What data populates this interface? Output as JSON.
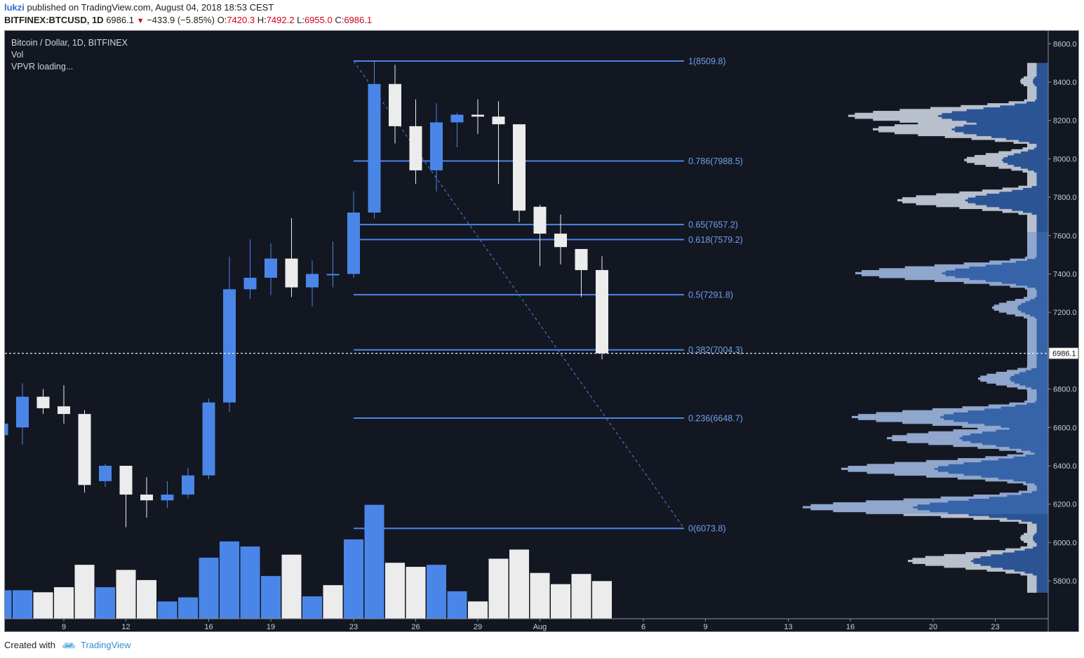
{
  "header": {
    "user": "lukzi",
    "published": "published on TradingView.com, August 04, 2018 18:53 CEST",
    "symbol": "BITFINEX:BTCUSD, 1D",
    "last": "6986.1",
    "change": "−433.9 (−5.85%)",
    "o_label": "O:",
    "o": "7420.3",
    "h_label": "H:",
    "h": "7492.2",
    "l_label": "L:",
    "l": "6955.0",
    "c_label": "C:",
    "c": "6986.1"
  },
  "legend": {
    "title": "Bitcoin / Dollar, 1D, BITFINEX",
    "vol": "Vol",
    "vpvr": "VPVR loading..."
  },
  "footer": {
    "created_with": "Created with",
    "brand": "TradingView"
  },
  "colors": {
    "up": "#4a86e8",
    "down": "#ececec",
    "background": "#131722",
    "fib": "#4a86e8",
    "profile_up": "#3b6cb5",
    "profile_down": "#c8cfdb"
  },
  "chart_data": {
    "type": "candlestick",
    "title": "Bitcoin / Dollar, 1D, BITFINEX",
    "ylim": [
      5700,
      8650
    ],
    "y_ticks": [
      5800,
      6000,
      6200,
      6400,
      6600,
      6800,
      7000,
      7200,
      7400,
      7600,
      7800,
      8000,
      8200,
      8400,
      8600
    ],
    "x_ticks": [
      {
        "label": "9",
        "day": 0
      },
      {
        "label": "12",
        "day": 3
      },
      {
        "label": "16",
        "day": 7
      },
      {
        "label": "19",
        "day": 10
      },
      {
        "label": "23",
        "day": 14
      },
      {
        "label": "26",
        "day": 17
      },
      {
        "label": "29",
        "day": 20
      },
      {
        "label": "Aug",
        "day": 23
      },
      {
        "label": "6",
        "day": 28
      },
      {
        "label": "9",
        "day": 31
      },
      {
        "label": "13",
        "day": 35
      },
      {
        "label": "16",
        "day": 38
      },
      {
        "label": "20",
        "day": 42
      },
      {
        "label": "23",
        "day": 45
      }
    ],
    "candles": [
      {
        "date": "Jul 6",
        "open": 6560,
        "high": 6650,
        "low": 6520,
        "close": 6620
      },
      {
        "date": "Jul 7",
        "open": 6600,
        "high": 6830,
        "low": 6510,
        "close": 6760
      },
      {
        "date": "Jul 8",
        "open": 6760,
        "high": 6800,
        "low": 6670,
        "close": 6700
      },
      {
        "date": "Jul 9",
        "open": 6710,
        "high": 6820,
        "low": 6620,
        "close": 6670
      },
      {
        "date": "Jul 10",
        "open": 6670,
        "high": 6690,
        "low": 6260,
        "close": 6300
      },
      {
        "date": "Jul 11",
        "open": 6320,
        "high": 6410,
        "low": 6290,
        "close": 6400
      },
      {
        "date": "Jul 12",
        "open": 6400,
        "high": 6400,
        "low": 6080,
        "close": 6250
      },
      {
        "date": "Jul 13",
        "open": 6250,
        "high": 6340,
        "low": 6130,
        "close": 6220
      },
      {
        "date": "Jul 14",
        "open": 6220,
        "high": 6320,
        "low": 6180,
        "close": 6250
      },
      {
        "date": "Jul 15",
        "open": 6250,
        "high": 6390,
        "low": 6230,
        "close": 6350
      },
      {
        "date": "Jul 16",
        "open": 6350,
        "high": 6750,
        "low": 6330,
        "close": 6730
      },
      {
        "date": "Jul 17",
        "open": 6730,
        "high": 7490,
        "low": 6680,
        "close": 7320
      },
      {
        "date": "Jul 18",
        "open": 7320,
        "high": 7580,
        "low": 7270,
        "close": 7380
      },
      {
        "date": "Jul 19",
        "open": 7380,
        "high": 7560,
        "low": 7290,
        "close": 7480
      },
      {
        "date": "Jul 20",
        "open": 7480,
        "high": 7690,
        "low": 7280,
        "close": 7330
      },
      {
        "date": "Jul 21",
        "open": 7330,
        "high": 7470,
        "low": 7230,
        "close": 7400
      },
      {
        "date": "Jul 22",
        "open": 7400,
        "high": 7570,
        "low": 7330,
        "close": 7400
      },
      {
        "date": "Jul 23",
        "open": 7400,
        "high": 7830,
        "low": 7380,
        "close": 7720
      },
      {
        "date": "Jul 24",
        "open": 7720,
        "high": 8510,
        "low": 7690,
        "close": 8390
      },
      {
        "date": "Jul 25",
        "open": 8390,
        "high": 8490,
        "low": 8080,
        "close": 8170
      },
      {
        "date": "Jul 26",
        "open": 8170,
        "high": 8310,
        "low": 7870,
        "close": 7940
      },
      {
        "date": "Jul 27",
        "open": 7940,
        "high": 8290,
        "low": 7830,
        "close": 8190
      },
      {
        "date": "Jul 28",
        "open": 8190,
        "high": 8240,
        "low": 8060,
        "close": 8230
      },
      {
        "date": "Jul 29",
        "open": 8230,
        "high": 8310,
        "low": 8130,
        "close": 8220
      },
      {
        "date": "Jul 30",
        "open": 8220,
        "high": 8300,
        "low": 7870,
        "close": 8180
      },
      {
        "date": "Jul 31",
        "open": 8180,
        "high": 8180,
        "low": 7670,
        "close": 7730
      },
      {
        "date": "Aug 1",
        "open": 7750,
        "high": 7760,
        "low": 7440,
        "close": 7610
      },
      {
        "date": "Aug 2",
        "open": 7610,
        "high": 7710,
        "low": 7450,
        "close": 7540
      },
      {
        "date": "Aug 3",
        "open": 7530,
        "high": 7530,
        "low": 7280,
        "close": 7420
      },
      {
        "date": "Aug 4",
        "open": 7420.3,
        "high": 7492.2,
        "low": 6955.0,
        "close": 6986.1
      }
    ],
    "volume": [
      {
        "dir": "up",
        "v": 28
      },
      {
        "dir": "up",
        "v": 28
      },
      {
        "dir": "down",
        "v": 26
      },
      {
        "dir": "down",
        "v": 31
      },
      {
        "dir": "down",
        "v": 53
      },
      {
        "dir": "up",
        "v": 31
      },
      {
        "dir": "down",
        "v": 48
      },
      {
        "dir": "down",
        "v": 38
      },
      {
        "dir": "up",
        "v": 17
      },
      {
        "dir": "up",
        "v": 21
      },
      {
        "dir": "up",
        "v": 60
      },
      {
        "dir": "up",
        "v": 76
      },
      {
        "dir": "up",
        "v": 71
      },
      {
        "dir": "up",
        "v": 42
      },
      {
        "dir": "down",
        "v": 63
      },
      {
        "dir": "up",
        "v": 22
      },
      {
        "dir": "down",
        "v": 33
      },
      {
        "dir": "up",
        "v": 78
      },
      {
        "dir": "up",
        "v": 112
      },
      {
        "dir": "down",
        "v": 55
      },
      {
        "dir": "down",
        "v": 51
      },
      {
        "dir": "up",
        "v": 53
      },
      {
        "dir": "up",
        "v": 27
      },
      {
        "dir": "down",
        "v": 17
      },
      {
        "dir": "down",
        "v": 59
      },
      {
        "dir": "down",
        "v": 68
      },
      {
        "dir": "down",
        "v": 45
      },
      {
        "dir": "down",
        "v": 34
      },
      {
        "dir": "down",
        "v": 44
      },
      {
        "dir": "down",
        "v": 37
      }
    ],
    "fib_levels": [
      {
        "ratio": "1",
        "value": 8509.8
      },
      {
        "ratio": "0.786",
        "value": 7988.5
      },
      {
        "ratio": "0.65",
        "value": 7657.2
      },
      {
        "ratio": "0.618",
        "value": 7579.2
      },
      {
        "ratio": "0.5",
        "value": 7291.8
      },
      {
        "ratio": "0.382",
        "value": 7004.3
      },
      {
        "ratio": "0.236",
        "value": 6648.7
      },
      {
        "ratio": "0",
        "value": 6073.8
      }
    ],
    "current_price": "6986.1",
    "volume_profile_value_area": [
      6150,
      7620
    ]
  }
}
